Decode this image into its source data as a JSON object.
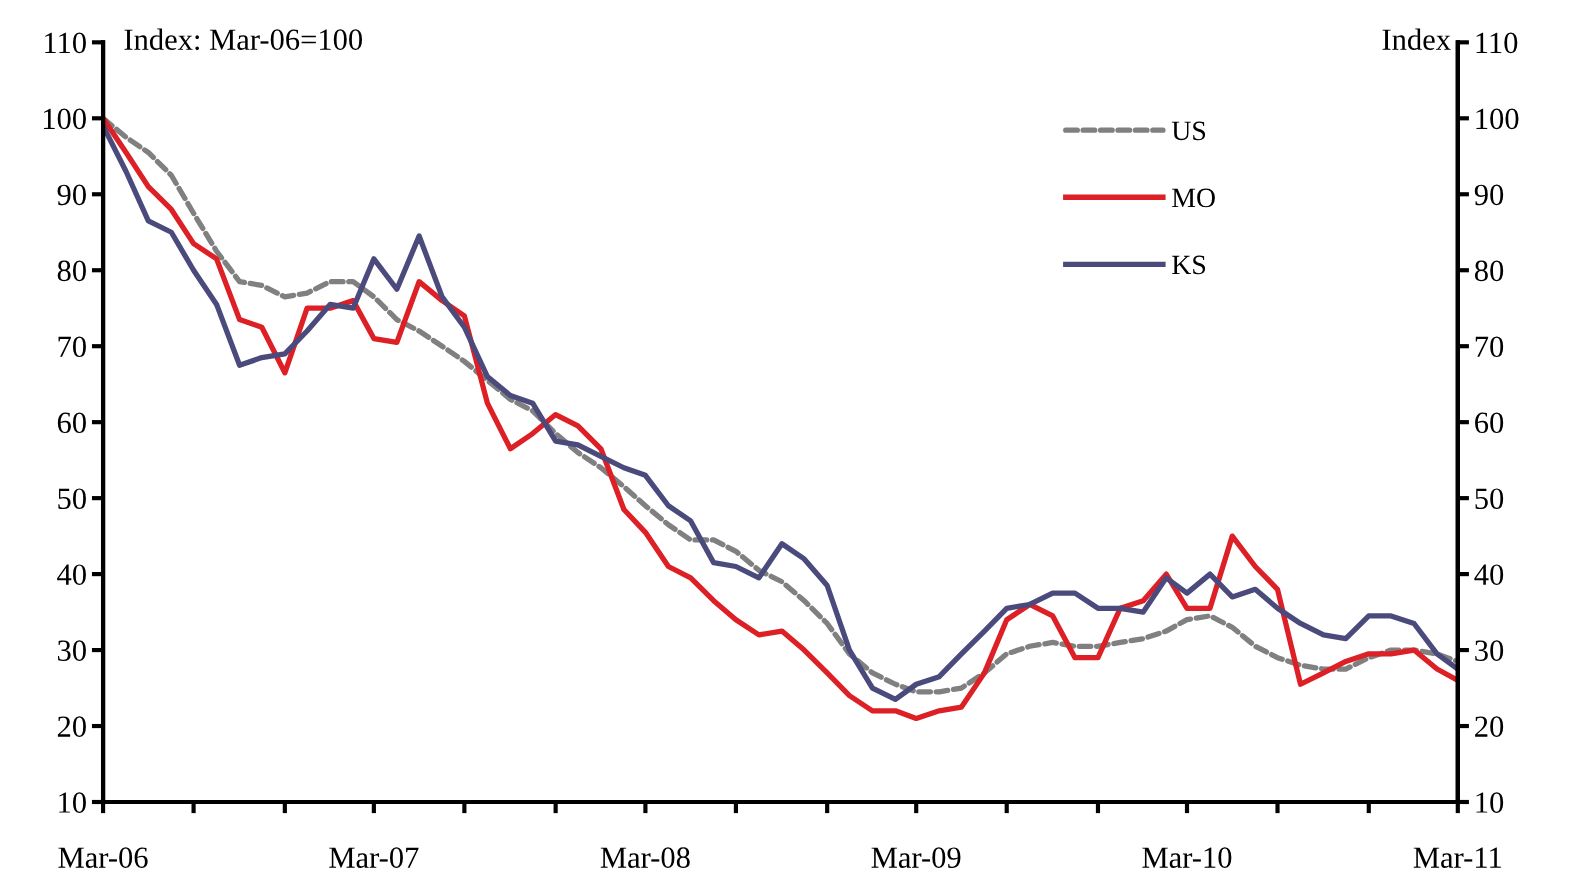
{
  "chart_data": {
    "type": "line",
    "ylabel": "Index: Mar-06=100",
    "y2label": "Index",
    "x": [
      "2006-03",
      "2006-04",
      "2006-05",
      "2006-06",
      "2006-07",
      "2006-08",
      "2006-09",
      "2006-10",
      "2006-11",
      "2006-12",
      "2007-01",
      "2007-02",
      "2007-03",
      "2007-04",
      "2007-05",
      "2007-06",
      "2007-07",
      "2007-08",
      "2007-09",
      "2007-10",
      "2007-11",
      "2007-12",
      "2008-01",
      "2008-02",
      "2008-03",
      "2008-04",
      "2008-05",
      "2008-06",
      "2008-07",
      "2008-08",
      "2008-09",
      "2008-10",
      "2008-11",
      "2008-12",
      "2009-01",
      "2009-02",
      "2009-03",
      "2009-04",
      "2009-05",
      "2009-06",
      "2009-07",
      "2009-08",
      "2009-09",
      "2009-10",
      "2009-11",
      "2009-12",
      "2010-01",
      "2010-02",
      "2010-03",
      "2010-04",
      "2010-05",
      "2010-06",
      "2010-07",
      "2010-08",
      "2010-09",
      "2010-10",
      "2010-11",
      "2010-12",
      "2011-01",
      "2011-02",
      "2011-03"
    ],
    "series": [
      {
        "name": "US",
        "color": "#808080",
        "line_style": "dashed",
        "values": [
          100,
          97.5,
          95.5,
          92.5,
          87.5,
          82.5,
          78.5,
          78,
          76.5,
          77,
          78.5,
          78.5,
          76.5,
          73.5,
          72,
          70,
          68,
          65.5,
          63,
          61.5,
          58.5,
          56,
          54,
          51.5,
          49,
          46.5,
          44.5,
          44.5,
          43,
          40.5,
          39,
          36.5,
          33.5,
          29.5,
          27,
          25.5,
          24.5,
          24.5,
          25,
          27,
          29.5,
          30.5,
          31,
          30.5,
          30.5,
          31,
          31.5,
          32.5,
          34,
          34.5,
          33,
          30.5,
          29,
          28,
          27.5,
          27.5,
          29,
          30,
          30,
          29.5,
          28.5
        ]
      },
      {
        "name": "MO",
        "color": "#dd1f26",
        "line_style": "solid",
        "values": [
          100,
          95.5,
          91,
          88,
          83.5,
          81.5,
          73.5,
          72.5,
          66.5,
          75,
          75,
          76,
          71,
          70.5,
          78.5,
          76,
          74,
          62.5,
          56.5,
          58.5,
          61,
          59.5,
          56.5,
          48.5,
          45.5,
          41,
          39.5,
          36.5,
          34,
          32,
          32.5,
          30,
          27,
          24,
          22,
          22,
          21,
          22,
          22.5,
          27,
          34,
          36,
          34.5,
          29,
          29,
          35.5,
          36.5,
          40,
          35.5,
          35.5,
          45,
          41,
          38,
          25.5,
          27,
          28.5,
          29.5,
          29.5,
          30,
          27.5,
          26
        ]
      },
      {
        "name": "KS",
        "color": "#4b4a7c",
        "line_style": "solid",
        "values": [
          99,
          93,
          86.5,
          85,
          80,
          75.5,
          67.5,
          68.5,
          69,
          72,
          75.5,
          75,
          81.5,
          77.5,
          84.5,
          76.5,
          72.5,
          66,
          63.5,
          62.5,
          57.5,
          57,
          55.5,
          54,
          53,
          49,
          47,
          41.5,
          41,
          39.5,
          44,
          42,
          38.5,
          30,
          25,
          23.5,
          25.5,
          26.5,
          29.5,
          32.5,
          35.5,
          36,
          37.5,
          37.5,
          35.5,
          35.5,
          35,
          39.5,
          37.5,
          40,
          37,
          38,
          35.5,
          33.5,
          32,
          31.5,
          34.5,
          34.5,
          33.5,
          29.5,
          27.5
        ]
      }
    ],
    "xlim": [
      "2006-03",
      "2011-03"
    ],
    "xticks": [
      {
        "value": "2006-03",
        "label": "Mar-06"
      },
      {
        "value": "2006-07",
        "label": null
      },
      {
        "value": "2006-11",
        "label": null
      },
      {
        "value": "2007-03",
        "label": "Mar-07"
      },
      {
        "value": "2007-07",
        "label": null
      },
      {
        "value": "2007-11",
        "label": null
      },
      {
        "value": "2008-03",
        "label": "Mar-08"
      },
      {
        "value": "2008-07",
        "label": null
      },
      {
        "value": "2008-11",
        "label": null
      },
      {
        "value": "2009-03",
        "label": "Mar-09"
      },
      {
        "value": "2009-07",
        "label": null
      },
      {
        "value": "2009-11",
        "label": null
      },
      {
        "value": "2010-03",
        "label": "Mar-10"
      },
      {
        "value": "2010-07",
        "label": null
      },
      {
        "value": "2010-11",
        "label": null
      },
      {
        "value": "2011-03",
        "label": "Mar-11"
      }
    ],
    "ylim": [
      10,
      110
    ],
    "yticks": [
      10,
      20,
      30,
      40,
      50,
      60,
      70,
      80,
      90,
      100,
      110
    ],
    "y2lim": [
      10,
      110
    ],
    "y2ticks": [
      10,
      20,
      30,
      40,
      50,
      60,
      70,
      80,
      90,
      100,
      110
    ],
    "grid": false,
    "legend": "top right",
    "marker": "none"
  }
}
